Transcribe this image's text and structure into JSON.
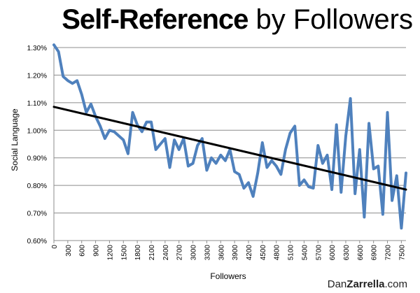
{
  "title": {
    "bold": "Self-Reference",
    "rest": " by Followers"
  },
  "credit": {
    "pre": "Dan",
    "strong": "Zarrella",
    "post": ".com"
  },
  "chart_data": {
    "type": "line",
    "title": "Self-Reference by Followers",
    "xlabel": "Followers",
    "ylabel": "Social Language",
    "xlim": [
      0,
      7600
    ],
    "ylim": [
      0.6,
      1.3
    ],
    "y_ticks": [
      "0.60%",
      "0.70%",
      "0.80%",
      "0.90%",
      "1.00%",
      "1.10%",
      "1.20%",
      "1.30%"
    ],
    "x_ticks": [
      "0",
      "300",
      "600",
      "900",
      "1200",
      "1500",
      "1800",
      "2100",
      "2400",
      "2700",
      "3000",
      "3300",
      "3600",
      "3900",
      "4200",
      "4500",
      "4800",
      "5100",
      "5400",
      "5700",
      "6000",
      "6300",
      "6600",
      "6900",
      "7200",
      "7500"
    ],
    "grid": "horizontal",
    "series": [
      {
        "color": "#4f81bd",
        "x": [
          0,
          100,
          200,
          300,
          400,
          500,
          600,
          700,
          800,
          900,
          1000,
          1100,
          1200,
          1300,
          1400,
          1500,
          1600,
          1700,
          1800,
          1900,
          2000,
          2100,
          2200,
          2300,
          2400,
          2500,
          2600,
          2700,
          2800,
          2900,
          3000,
          3100,
          3200,
          3300,
          3400,
          3500,
          3600,
          3700,
          3800,
          3900,
          4000,
          4100,
          4200,
          4300,
          4400,
          4500,
          4600,
          4700,
          4800,
          4900,
          5000,
          5100,
          5200,
          5300,
          5400,
          5500,
          5600,
          5700,
          5800,
          5900,
          6000,
          6100,
          6200,
          6300,
          6400,
          6500,
          6600,
          6700,
          6800,
          6900,
          7000,
          7100,
          7200,
          7300,
          7400,
          7500,
          7600
        ],
        "y": [
          1.31,
          1.285,
          1.195,
          1.18,
          1.17,
          1.18,
          1.13,
          1.065,
          1.095,
          1.05,
          1.015,
          0.97,
          1.0,
          0.995,
          0.98,
          0.965,
          0.915,
          1.065,
          1.02,
          0.995,
          1.03,
          1.03,
          0.93,
          0.95,
          0.97,
          0.865,
          0.965,
          0.93,
          0.97,
          0.87,
          0.88,
          0.945,
          0.97,
          0.855,
          0.9,
          0.88,
          0.91,
          0.89,
          0.93,
          0.85,
          0.84,
          0.79,
          0.81,
          0.76,
          0.845,
          0.955,
          0.865,
          0.89,
          0.87,
          0.84,
          0.93,
          0.99,
          1.015,
          0.8,
          0.82,
          0.795,
          0.79,
          0.945,
          0.88,
          0.91,
          0.785,
          1.02,
          0.775,
          0.98,
          1.115,
          0.77,
          0.93,
          0.685,
          1.025,
          0.86,
          0.87,
          0.695,
          1.065,
          0.745,
          0.835,
          0.645,
          0.845
        ]
      },
      {
        "color": "#000000",
        "x": [
          0,
          7600
        ],
        "y": [
          1.085,
          0.785
        ]
      }
    ]
  }
}
